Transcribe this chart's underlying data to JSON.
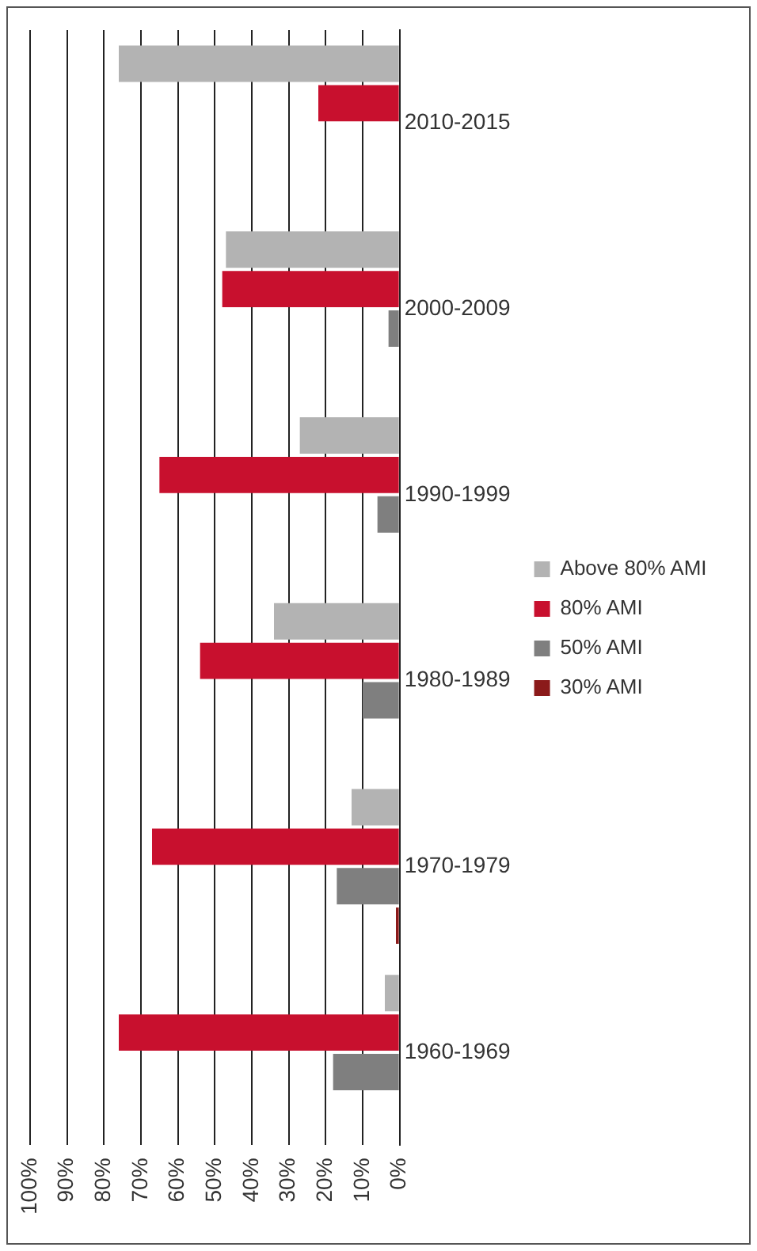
{
  "chart_data": {
    "type": "bar",
    "orientation": "horizontal",
    "categories": [
      "2010-2015",
      "2000-2009",
      "1990-1999",
      "1980-1989",
      "1970-1979",
      "1960-1969"
    ],
    "series": [
      {
        "name": "Above 80% AMI",
        "color": "#b3b3b3",
        "values": [
          76,
          47,
          27,
          34,
          13,
          4
        ]
      },
      {
        "name": "80% AMI",
        "color": "#c8102e",
        "values": [
          22,
          48,
          65,
          54,
          67,
          76
        ]
      },
      {
        "name": "50% AMI",
        "color": "#7f7f7f",
        "values": [
          0,
          3,
          6,
          10,
          17,
          18
        ]
      },
      {
        "name": "30% AMI",
        "color": "#8b1a1a",
        "values": [
          0,
          0,
          0,
          0,
          1,
          0
        ]
      }
    ],
    "xlim": [
      100,
      0
    ],
    "xticks": [
      {
        "value": 0,
        "label": "0%"
      },
      {
        "value": 10,
        "label": "10%"
      },
      {
        "value": 20,
        "label": "20%"
      },
      {
        "value": 30,
        "label": "30%"
      },
      {
        "value": 40,
        "label": "40%"
      },
      {
        "value": 50,
        "label": "50%"
      },
      {
        "value": 60,
        "label": "60%"
      },
      {
        "value": 70,
        "label": "70%"
      },
      {
        "value": 80,
        "label": "80%"
      },
      {
        "value": 90,
        "label": "90%"
      },
      {
        "value": 100,
        "label": "100%"
      }
    ],
    "grid": "x",
    "legend": "right"
  }
}
